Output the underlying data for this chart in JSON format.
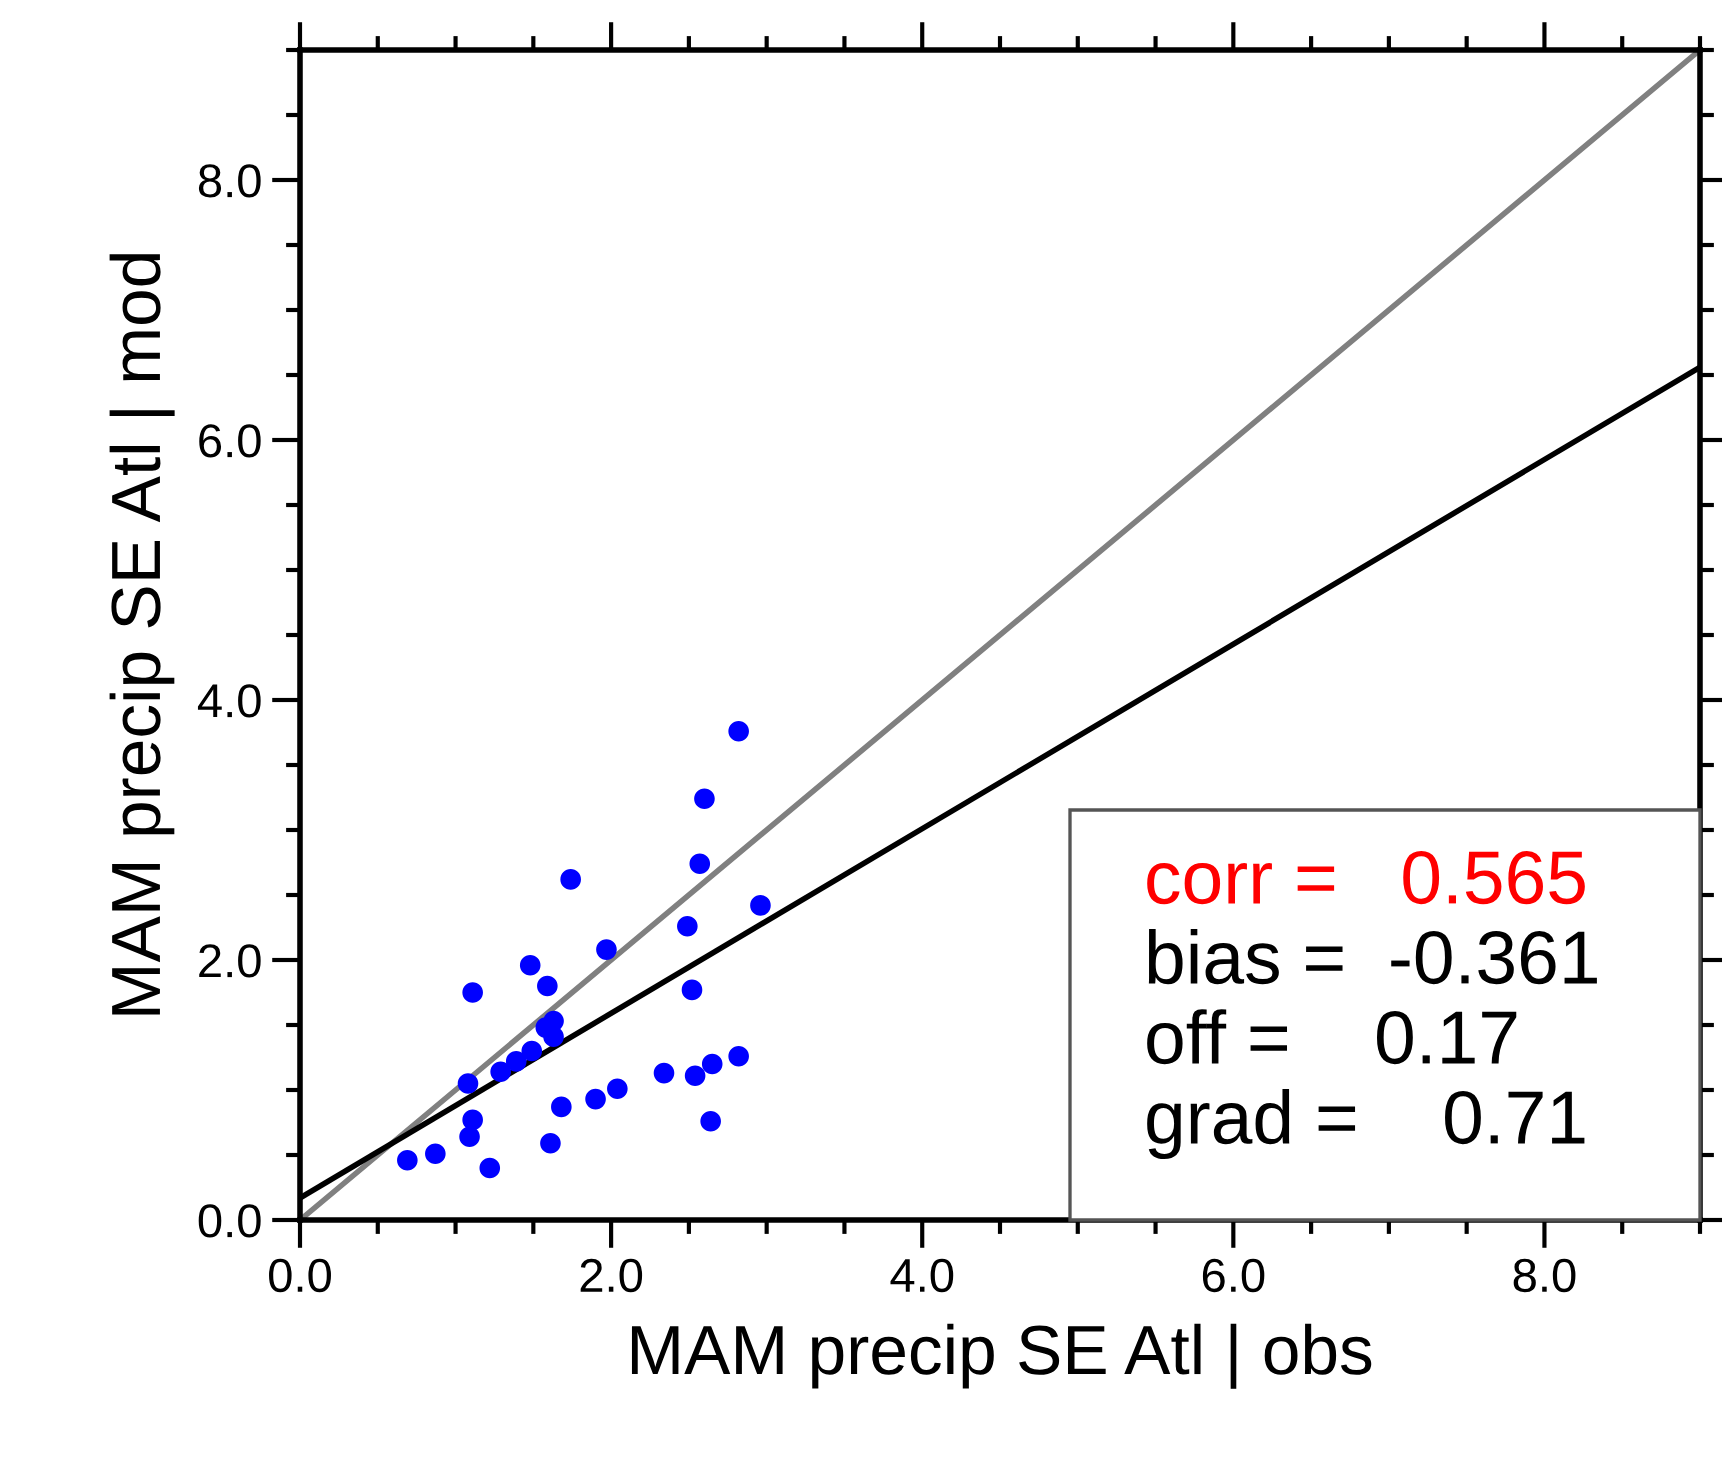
{
  "chart_data": {
    "type": "scatter",
    "xlabel": "MAM precip SE Atl | obs",
    "ylabel": "MAM precip SE Atl | mod",
    "xlim": [
      0,
      9
    ],
    "ylim": [
      0,
      9
    ],
    "xticks": [
      {
        "value": 0,
        "label": "0.0"
      },
      {
        "value": 2,
        "label": "2.0"
      },
      {
        "value": 4,
        "label": "4.0"
      },
      {
        "value": 6,
        "label": "6.0"
      },
      {
        "value": 8,
        "label": "8.0"
      }
    ],
    "yticks": [
      {
        "value": 0,
        "label": "0.0"
      },
      {
        "value": 2,
        "label": "2.0"
      },
      {
        "value": 4,
        "label": "4.0"
      },
      {
        "value": 6,
        "label": "6.0"
      },
      {
        "value": 8,
        "label": "8.0"
      }
    ],
    "grid": false,
    "legend": false,
    "series": [
      {
        "type": "line",
        "color": "#808080",
        "x": [
          0,
          9
        ],
        "values": [
          0,
          9
        ]
      },
      {
        "type": "line",
        "color": "#000000",
        "x": [
          0,
          9
        ],
        "values": [
          0.17,
          6.56
        ]
      },
      {
        "marker": "circle",
        "color": "#0000ff",
        "x": [
          2.82,
          2.6,
          2.57,
          1.74,
          2.96,
          2.49,
          1.97,
          1.48,
          1.59,
          1.11,
          2.52,
          1.63,
          1.58,
          1.63,
          1.49,
          1.39,
          1.29,
          1.08,
          2.82,
          2.65,
          2.54,
          2.34,
          2.04,
          1.9,
          1.68,
          2.64,
          1.11,
          1.09,
          1.61,
          0.87,
          0.69,
          1.22
        ],
        "values": [
          3.76,
          3.24,
          2.74,
          2.62,
          2.42,
          2.26,
          2.08,
          1.96,
          1.8,
          1.75,
          1.77,
          1.53,
          1.48,
          1.41,
          1.3,
          1.22,
          1.14,
          1.05,
          1.26,
          1.2,
          1.11,
          1.13,
          1.01,
          0.93,
          0.87,
          0.76,
          0.77,
          0.64,
          0.59,
          0.51,
          0.46,
          0.4
        ]
      }
    ],
    "annotations": [
      "corr =   0.565",
      "bias =  -0.361",
      "off =    0.17",
      "grad =    0.71"
    ]
  }
}
